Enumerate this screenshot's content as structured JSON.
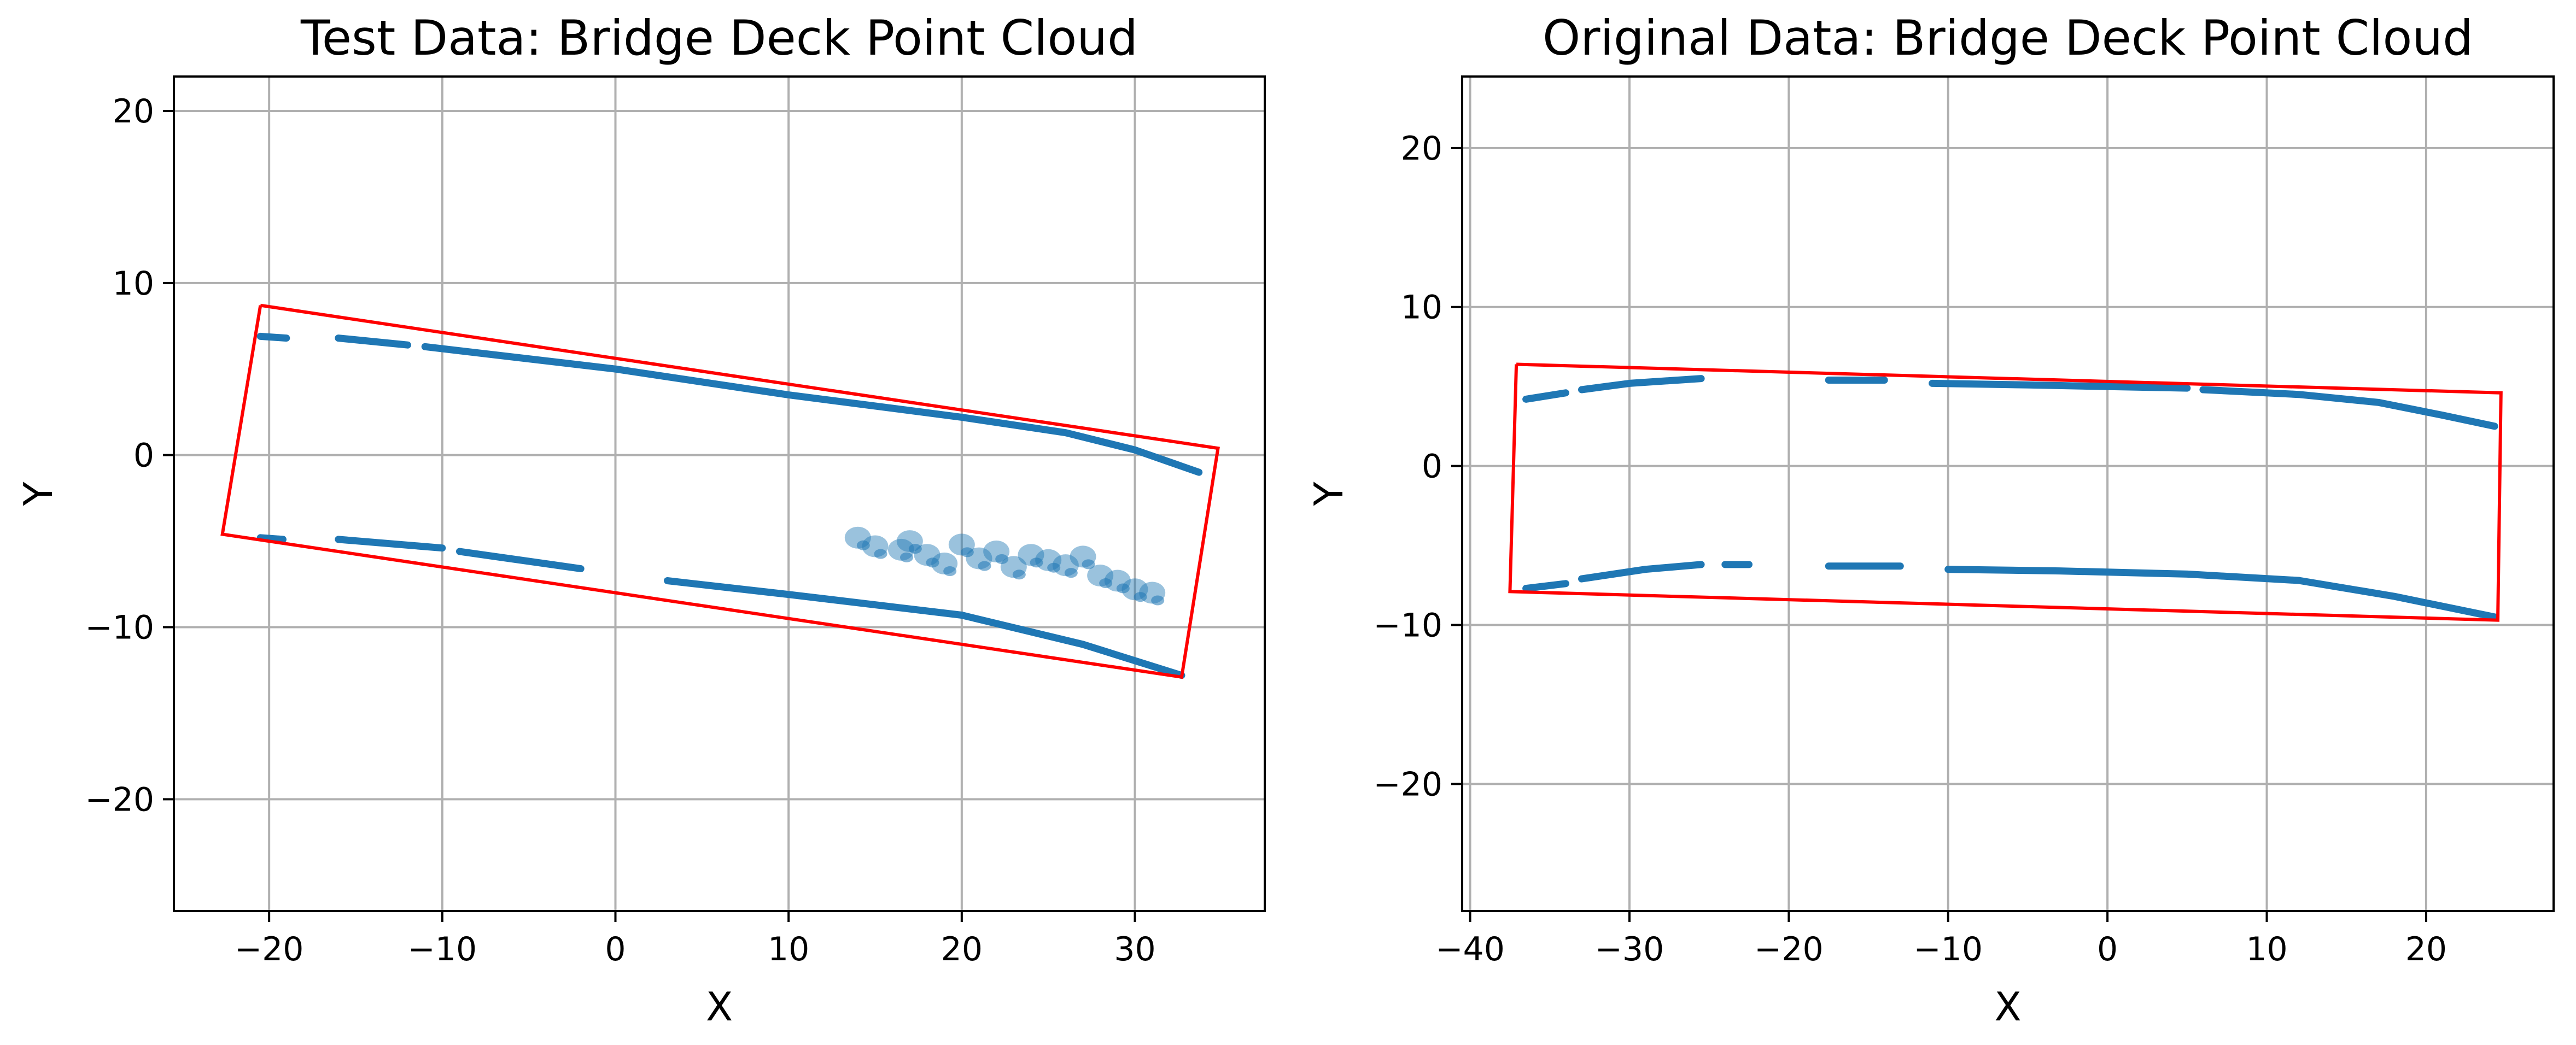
{
  "chart_data": [
    {
      "type": "scatter",
      "title": "Test Data: Bridge Deck Point Cloud",
      "xlabel": "X",
      "ylabel": "Y",
      "xlim": [
        -25.5,
        37.5
      ],
      "ylim": [
        -26.5,
        22.0
      ],
      "xticks": [
        -20,
        -10,
        0,
        10,
        20,
        30
      ],
      "yticks": [
        -20,
        -10,
        0,
        10,
        20
      ],
      "grid": true,
      "point_color": "#1f77b4",
      "boundary_color": "#ff0000",
      "boundary": {
        "x": [
          -20.5,
          34.8,
          32.7,
          -22.7,
          -20.5
        ],
        "y": [
          8.7,
          0.4,
          -12.9,
          -4.6,
          8.7
        ]
      },
      "strips": [
        {
          "x": [
            -20.5,
            -19.0
          ],
          "y": [
            6.9,
            6.8
          ]
        },
        {
          "x": [
            -16.0,
            -12.0
          ],
          "y": [
            6.8,
            6.4
          ]
        },
        {
          "x": [
            -11.0,
            0.0,
            10.0,
            20.0,
            26.0,
            30.0,
            33.7
          ],
          "y": [
            6.3,
            5.0,
            3.5,
            2.2,
            1.3,
            0.3,
            -1.0
          ]
        },
        {
          "x": [
            -20.5,
            -19.2
          ],
          "y": [
            -4.8,
            -4.9
          ]
        },
        {
          "x": [
            -16.0,
            -10.0
          ],
          "y": [
            -4.9,
            -5.4
          ]
        },
        {
          "x": [
            -9.0,
            -2.0
          ],
          "y": [
            -5.6,
            -6.6
          ]
        },
        {
          "x": [
            3.0,
            10.0,
            20.0
          ],
          "y": [
            -7.3,
            -8.1,
            -9.3
          ]
        },
        {
          "x": [
            20.0,
            27.0,
            32.7
          ],
          "y": [
            -9.3,
            -11.0,
            -12.8
          ]
        }
      ],
      "clusters": [
        {
          "x": [
            14.0,
            15.0,
            16.5
          ],
          "y": [
            -4.8,
            -5.3,
            -5.5
          ]
        },
        {
          "x": [
            17.0,
            18.0,
            19.0,
            20.0,
            21.0,
            22.0,
            23.0,
            24.0,
            25.0,
            26.0,
            27.0,
            28.0,
            29.0,
            30.0,
            31.0
          ],
          "y": [
            -5.0,
            -5.8,
            -6.3,
            -5.2,
            -6.0,
            -5.6,
            -6.5,
            -5.8,
            -6.1,
            -6.4,
            -5.9,
            -7.0,
            -7.3,
            -7.8,
            -8.0
          ]
        }
      ]
    },
    {
      "type": "scatter",
      "title": "Original Data: Bridge Deck Point Cloud",
      "xlabel": "X",
      "ylabel": "Y",
      "xlim": [
        -40.5,
        28.0
      ],
      "ylim": [
        -28.0,
        24.5
      ],
      "xticks": [
        -40,
        -30,
        -20,
        -10,
        0,
        10,
        20
      ],
      "yticks": [
        -20,
        -10,
        0,
        10,
        20
      ],
      "grid": true,
      "point_color": "#1f77b4",
      "boundary_color": "#ff0000",
      "boundary": {
        "x": [
          -37.1,
          24.7,
          24.5,
          -37.5,
          -37.1
        ],
        "y": [
          6.4,
          4.6,
          -9.7,
          -7.9,
          6.4
        ]
      },
      "strips": [
        {
          "x": [
            -36.5,
            -34.0
          ],
          "y": [
            4.2,
            4.6
          ]
        },
        {
          "x": [
            -33.0,
            -30.0,
            -25.5
          ],
          "y": [
            4.8,
            5.2,
            5.5
          ]
        },
        {
          "x": [
            -17.5,
            -14.0
          ],
          "y": [
            5.4,
            5.4
          ]
        },
        {
          "x": [
            -11.0,
            -5.0,
            0.0,
            5.0
          ],
          "y": [
            5.2,
            5.1,
            5.0,
            4.9
          ]
        },
        {
          "x": [
            6.0,
            12.0,
            17.0,
            21.0,
            24.3
          ],
          "y": [
            4.8,
            4.5,
            4.0,
            3.2,
            2.5
          ]
        },
        {
          "x": [
            -36.5,
            -34.0
          ],
          "y": [
            -7.7,
            -7.4
          ]
        },
        {
          "x": [
            -33.0,
            -29.0,
            -25.5
          ],
          "y": [
            -7.1,
            -6.5,
            -6.2
          ]
        },
        {
          "x": [
            -24.0,
            -22.5
          ],
          "y": [
            -6.2,
            -6.2
          ]
        },
        {
          "x": [
            -17.5,
            -13.0
          ],
          "y": [
            -6.3,
            -6.3
          ]
        },
        {
          "x": [
            -10.0,
            -3.0,
            5.0,
            12.0
          ],
          "y": [
            -6.5,
            -6.6,
            -6.8,
            -7.2
          ]
        },
        {
          "x": [
            12.0,
            18.0,
            24.3
          ],
          "y": [
            -7.2,
            -8.2,
            -9.5
          ]
        }
      ],
      "clusters": []
    }
  ]
}
